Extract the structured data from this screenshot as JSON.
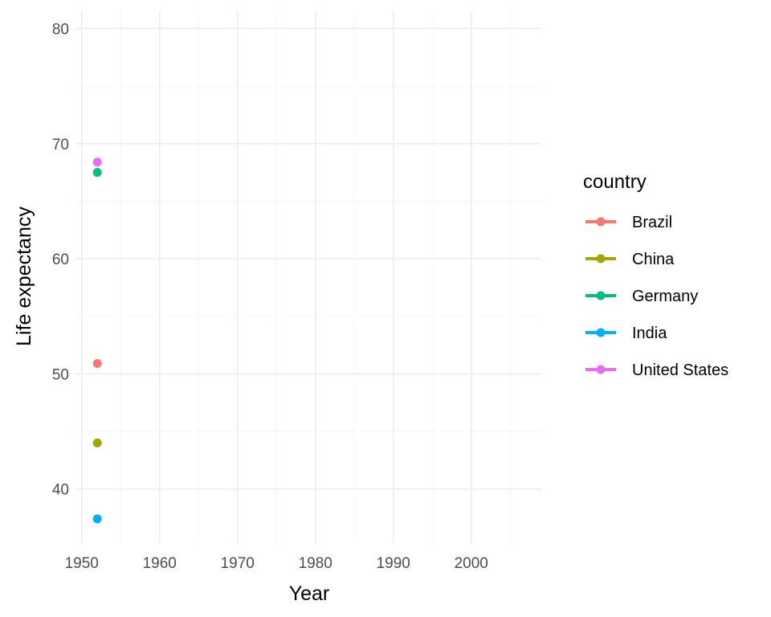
{
  "chart_data": {
    "type": "line",
    "title": "",
    "xlabel": "Year",
    "ylabel": "Life expectancy",
    "xlim": [
      1949.2,
      2009.0
    ],
    "ylim": [
      35.3,
      81.5
    ],
    "x_ticks": [
      1950,
      1960,
      1970,
      1980,
      1990,
      2000
    ],
    "y_ticks": [
      40,
      50,
      60,
      70,
      80
    ],
    "grid": true,
    "legend_title": "country",
    "legend_position": "right",
    "series": [
      {
        "name": "Brazil",
        "color": "#F8766D",
        "x": [
          1952
        ],
        "y": [
          50.9
        ]
      },
      {
        "name": "China",
        "color": "#A3A500",
        "x": [
          1952
        ],
        "y": [
          44.0
        ]
      },
      {
        "name": "Germany",
        "color": "#00BF7D",
        "x": [
          1952
        ],
        "y": [
          67.5
        ]
      },
      {
        "name": "India",
        "color": "#00B0F6",
        "x": [
          1952
        ],
        "y": [
          37.4
        ]
      },
      {
        "name": "United States",
        "color": "#E76BF3",
        "x": [
          1952
        ],
        "y": [
          68.4
        ]
      }
    ]
  }
}
